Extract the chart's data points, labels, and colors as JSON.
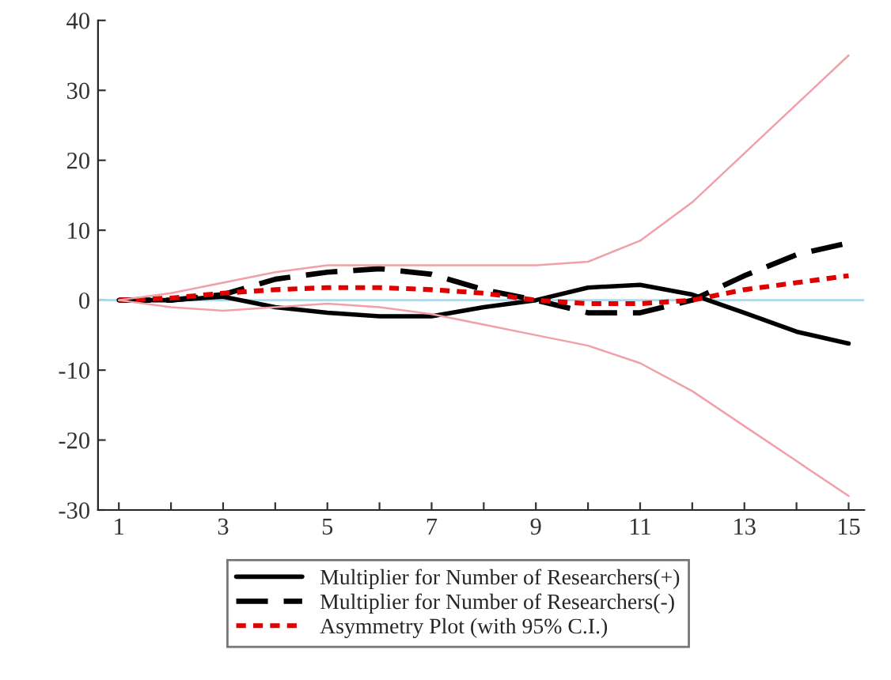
{
  "chart_data": {
    "type": "line",
    "x": [
      1,
      2,
      3,
      4,
      5,
      6,
      7,
      8,
      9,
      10,
      11,
      12,
      13,
      14,
      15
    ],
    "xlim": [
      0.6,
      15.3
    ],
    "xticks": [
      1,
      {
        "value": 2,
        "label": null
      },
      3,
      {
        "value": 4,
        "label": null
      },
      5,
      {
        "value": 6,
        "label": null
      },
      7,
      {
        "value": 8,
        "label": null
      },
      9,
      {
        "value": 10,
        "label": null
      },
      11,
      {
        "value": 12,
        "label": null
      },
      13,
      {
        "value": 14,
        "label": null
      },
      15
    ],
    "ylim": [
      -30,
      40
    ],
    "yticks": [
      -30,
      -20,
      -10,
      0,
      10,
      20,
      30,
      40
    ],
    "grid": false,
    "legend": "bottom",
    "ref_lines": [
      {
        "axis": "y",
        "value": 0,
        "color": "#b0d8e8"
      }
    ],
    "series": [
      {
        "name": "Multiplier for Number of Researchers(+)",
        "color": "#000000",
        "line_style": "solid",
        "values": [
          0,
          0,
          0.5,
          -1,
          -1.8,
          -2.3,
          -2.3,
          -1,
          0,
          1.8,
          2.2,
          0.8,
          -1.8,
          -4.5,
          -6.2
        ]
      },
      {
        "name": "Multiplier for Number of Researchers(-)",
        "color": "#000000",
        "line_style": "dashed",
        "values": [
          0,
          0,
          0.8,
          3,
          4,
          4.5,
          3.7,
          1.5,
          0,
          -1.8,
          -1.8,
          0,
          3.5,
          6.5,
          8.2
        ]
      },
      {
        "name": "Asymmetry Plot (with 95% C.I.)",
        "color": "#e00000",
        "line_style": "dotted",
        "values": [
          0,
          0.3,
          1,
          1.5,
          1.8,
          1.8,
          1.5,
          1,
          0,
          -0.5,
          -0.5,
          0,
          1.5,
          2.5,
          3.5
        ]
      },
      {
        "color": "#f0a0a8",
        "line_style": "solid",
        "values": [
          0,
          1,
          2.5,
          4,
          5,
          5,
          5,
          5,
          5,
          5.5,
          8.5,
          14,
          21,
          28,
          35
        ]
      },
      {
        "color": "#f0a0a8",
        "line_style": "solid",
        "values": [
          0,
          -1,
          -1.5,
          -1,
          -0.5,
          -1,
          -2,
          -3.5,
          -5,
          -6.5,
          -9,
          -13,
          -18,
          -23,
          -28
        ]
      }
    ]
  }
}
